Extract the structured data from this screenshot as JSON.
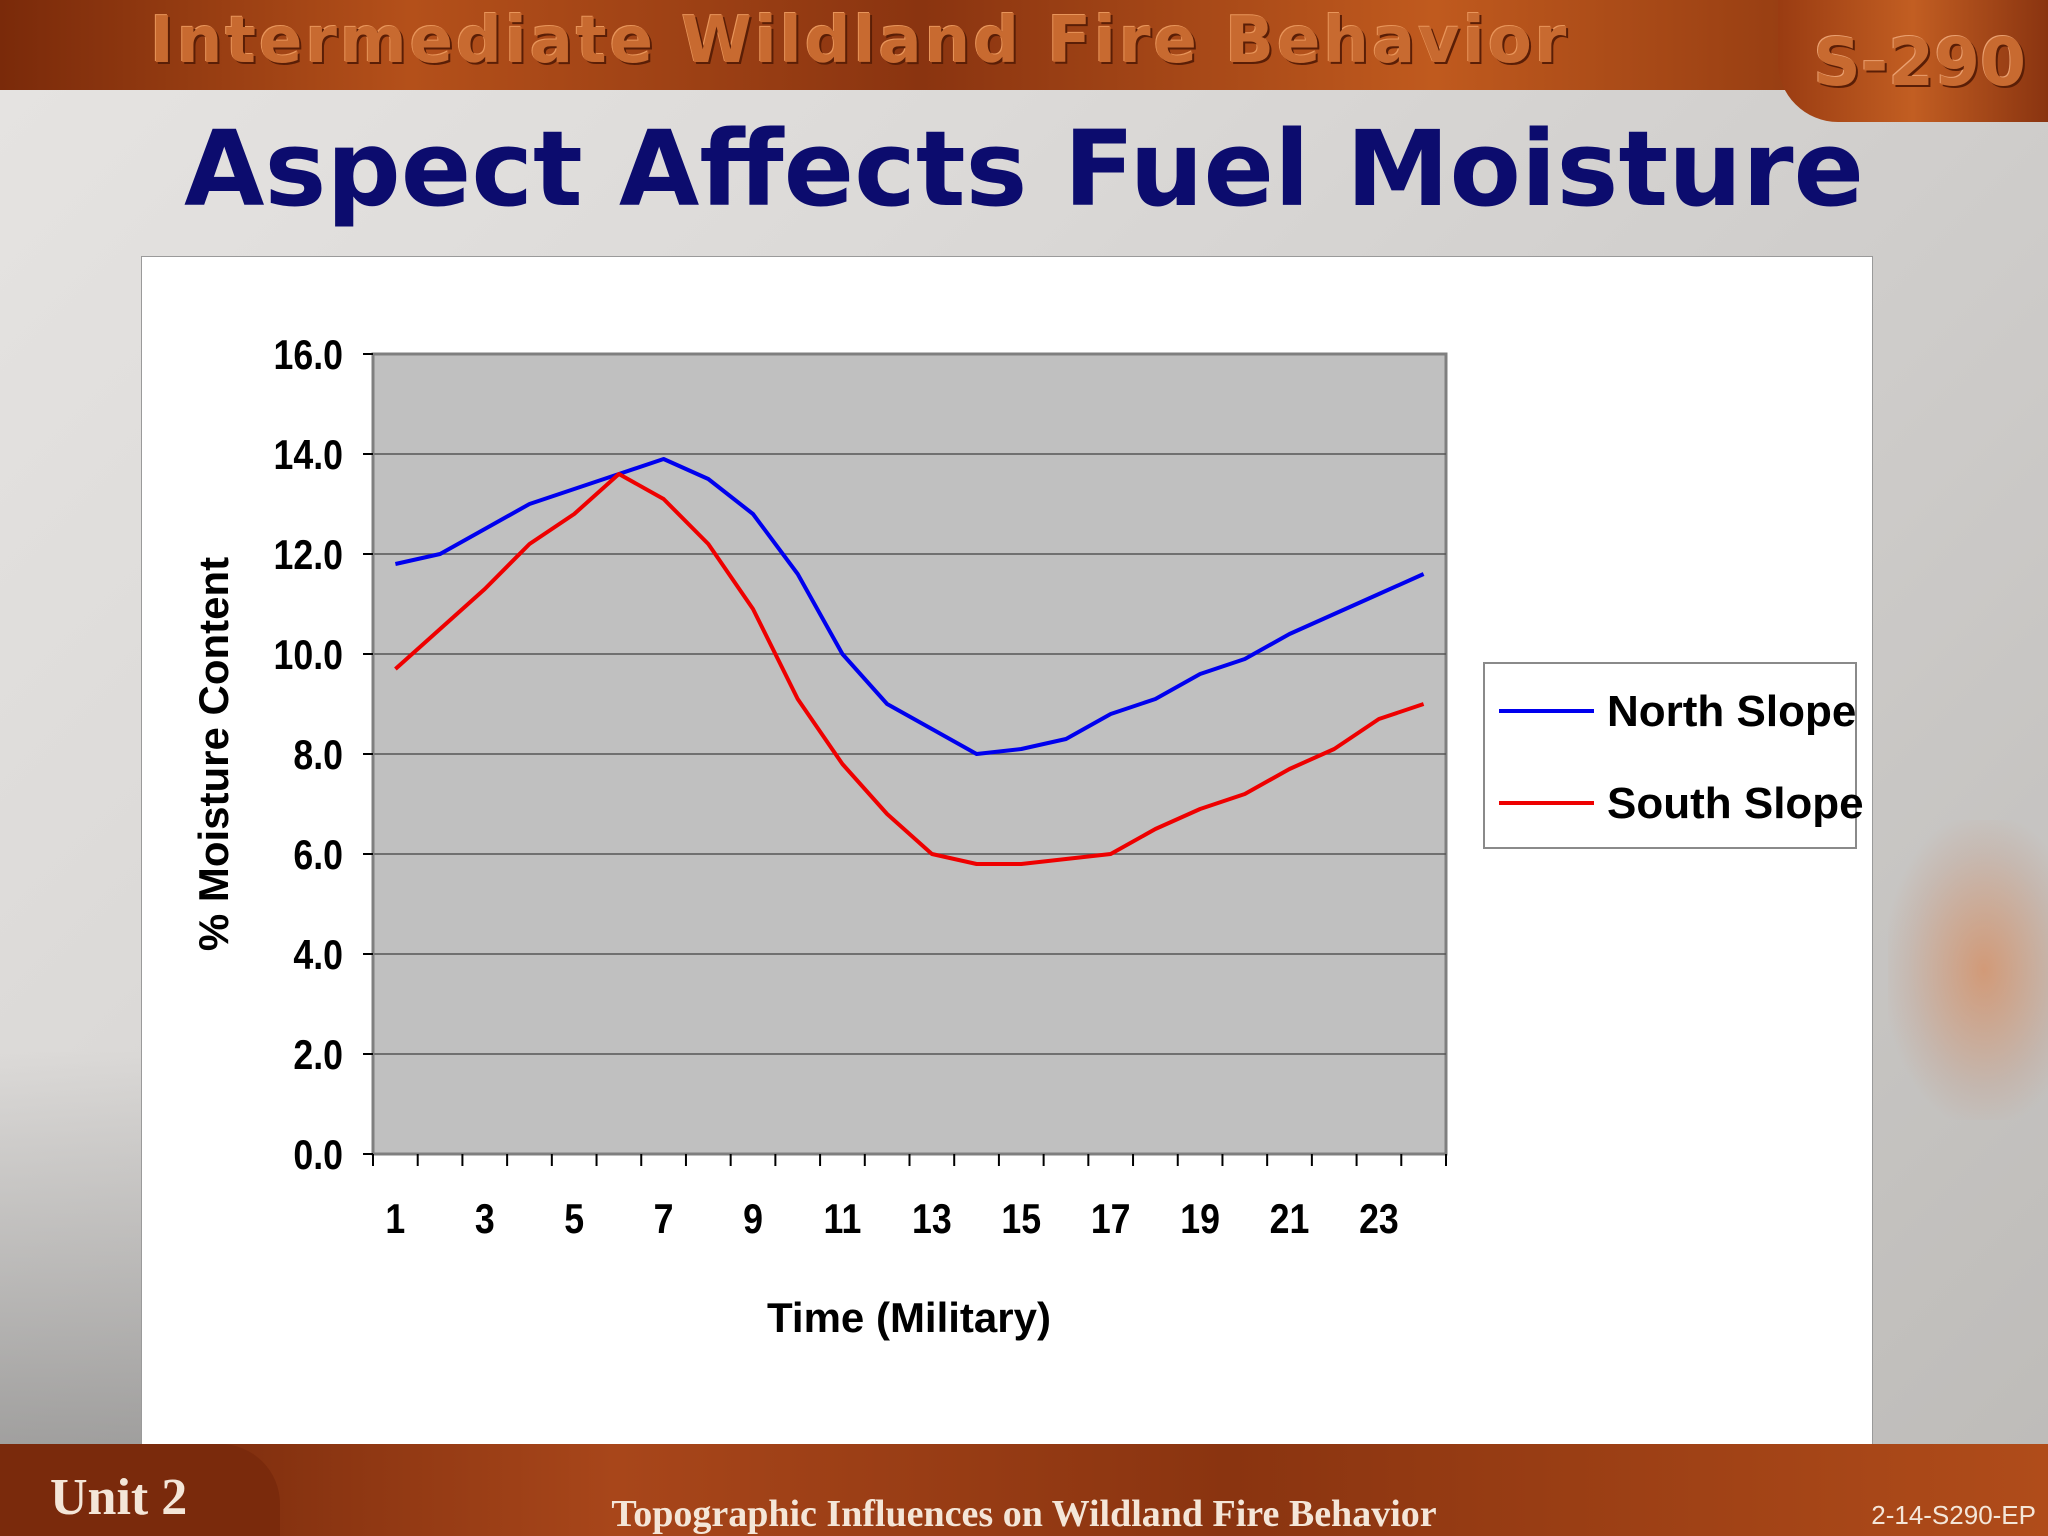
{
  "header": {
    "course_title": "Intermediate Wildland Fire Behavior",
    "course_code": "S-290"
  },
  "slide": {
    "title": "Aspect Affects Fuel Moisture"
  },
  "footer": {
    "unit": "Unit 2",
    "topic": "Topographic Influences on Wildland Fire Behavior",
    "slide_code": "2-14-S290-EP"
  },
  "chart_data": {
    "type": "line",
    "title": "",
    "xlabel": "Time (Military)",
    "ylabel": "% Moisture Content",
    "x": [
      1,
      2,
      3,
      4,
      5,
      6,
      7,
      8,
      9,
      10,
      11,
      12,
      13,
      14,
      15,
      16,
      17,
      18,
      19,
      20,
      21,
      22,
      23,
      24
    ],
    "x_tick_labels": [
      "1",
      "3",
      "5",
      "7",
      "9",
      "11",
      "13",
      "15",
      "17",
      "19",
      "21",
      "23"
    ],
    "y_tick_labels": [
      "0.0",
      "2.0",
      "4.0",
      "6.0",
      "8.0",
      "10.0",
      "12.0",
      "14.0",
      "16.0"
    ],
    "ylim": [
      0,
      16
    ],
    "grid": "horizontal",
    "legend_position": "right",
    "plot_background": "#c0c0c0",
    "series": [
      {
        "name": "North Slope",
        "color": "#0000ee",
        "values": [
          11.8,
          12.0,
          12.5,
          13.0,
          13.3,
          13.6,
          13.9,
          13.5,
          12.8,
          11.6,
          10.0,
          9.0,
          8.5,
          8.0,
          8.1,
          8.3,
          8.8,
          9.1,
          9.6,
          9.9,
          10.4,
          10.8,
          11.2,
          11.6
        ]
      },
      {
        "name": "South Slope",
        "color": "#ee0000",
        "values": [
          9.7,
          10.5,
          11.3,
          12.2,
          12.8,
          13.6,
          13.1,
          12.2,
          10.9,
          9.1,
          7.8,
          6.8,
          6.0,
          5.8,
          5.8,
          5.9,
          6.0,
          6.5,
          6.9,
          7.2,
          7.7,
          8.1,
          8.7,
          9.0
        ]
      }
    ]
  }
}
